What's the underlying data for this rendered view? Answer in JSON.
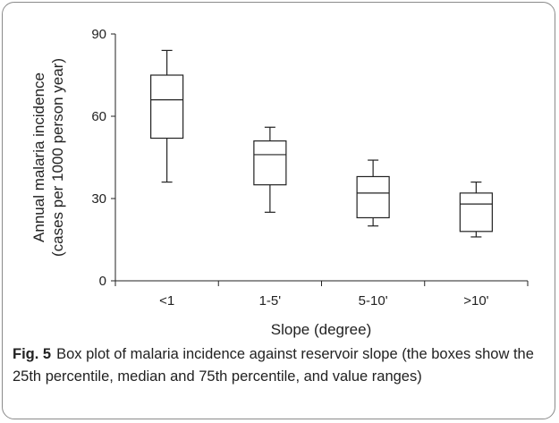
{
  "chart_data": {
    "type": "box",
    "xlabel": "Slope (degree)",
    "ylabel_lines": [
      "Annual malaria incidence",
      "(cases per 1000 person year)"
    ],
    "ylim": [
      0,
      90
    ],
    "yticks": [
      0,
      30,
      60,
      90
    ],
    "grid": false,
    "categories": [
      "<1",
      "1-5'",
      "5-10'",
      ">10'"
    ],
    "boxes": [
      {
        "category": "<1",
        "min": 36,
        "q1": 52,
        "median": 66,
        "q3": 75,
        "max": 84
      },
      {
        "category": "1-5'",
        "min": 25,
        "q1": 35,
        "median": 46,
        "q3": 51,
        "max": 56
      },
      {
        "category": "5-10'",
        "min": 20,
        "q1": 23,
        "median": 32,
        "q3": 38,
        "max": 44
      },
      {
        "category": ">10'",
        "min": 16,
        "q1": 18,
        "median": 28,
        "q3": 32,
        "max": 36
      }
    ]
  },
  "caption": {
    "label": "Fig. 5",
    "text": "Box plot of malaria incidence against reservoir slope (the boxes show the 25th percentile, median and 75th percentile, and value ranges)"
  },
  "colors": {
    "line": "#222222",
    "frame": "#8a8a8a"
  }
}
